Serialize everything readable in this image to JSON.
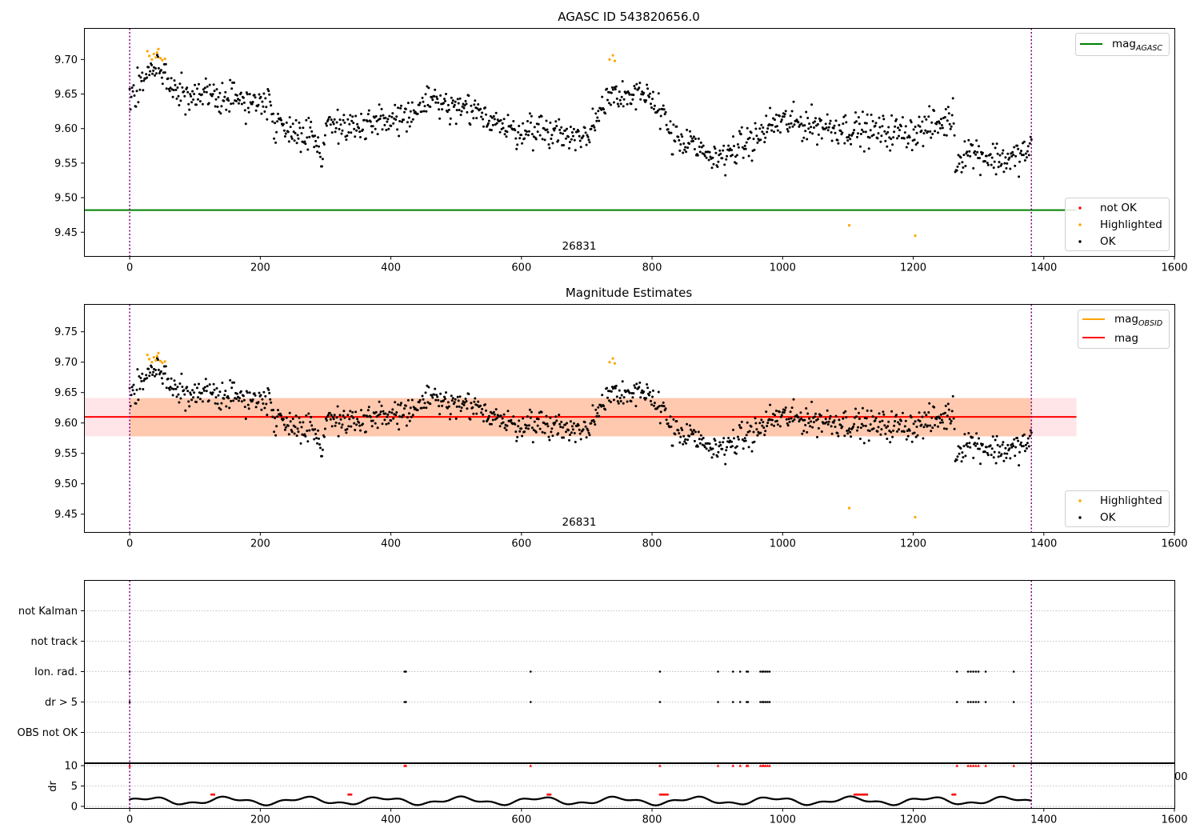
{
  "chart_data": [
    {
      "type": "scatter",
      "title": "AGASC ID 543820656.0",
      "xlim": [
        -70,
        1600
      ],
      "ylim": [
        9.415,
        9.745
      ],
      "xticks": [
        0,
        200,
        400,
        600,
        800,
        1000,
        1200,
        1400,
        1600
      ],
      "yticks": [
        9.45,
        9.5,
        9.55,
        9.6,
        9.65,
        9.7
      ],
      "ytick_labels": [
        "9.45",
        "9.50",
        "9.55",
        "9.60",
        "9.65",
        "9.70"
      ],
      "grid": false,
      "vlines": [
        0,
        1381
      ],
      "annotation": {
        "text": "26831",
        "x": 690,
        "y": 9.425
      },
      "lines": [
        {
          "name": "mag",
          "subscript": "AGASC",
          "y": 9.482,
          "x": [
            -70,
            1450
          ],
          "color": "#008000"
        }
      ],
      "line_legend": {
        "placement": "top-right"
      },
      "marker_legend": {
        "placement": "bottom-right",
        "entries": [
          {
            "name": "not OK",
            "color": "#ff0000"
          },
          {
            "name": "Highlighted",
            "color": "#ffa500"
          },
          {
            "name": "OK",
            "color": "#000000"
          }
        ]
      },
      "series_ok": {
        "name": "OK",
        "color": "#000000",
        "x_range": [
          0,
          1381
        ],
        "count": 1150
      },
      "series_highlighted": {
        "name": "Highlighted",
        "color": "#ffa500",
        "x": [
          27,
          30,
          34,
          37,
          40,
          42,
          44,
          47,
          50,
          54,
          735,
          740,
          743,
          1102,
          1203
        ],
        "y": [
          9.712,
          9.705,
          9.7,
          9.708,
          9.703,
          9.71,
          9.715,
          9.702,
          9.699,
          9.701,
          9.7,
          9.706,
          9.698,
          9.46,
          9.445
        ]
      },
      "series_not_ok": {
        "name": "not OK",
        "color": "#ff0000",
        "x": [],
        "y": []
      }
    },
    {
      "type": "scatter",
      "title": "Magnitude Estimates",
      "xlim": [
        -70,
        1600
      ],
      "ylim": [
        9.42,
        9.795
      ],
      "xticks": [
        0,
        200,
        400,
        600,
        800,
        1000,
        1200,
        1400,
        1600
      ],
      "yticks": [
        9.45,
        9.5,
        9.55,
        9.6,
        9.65,
        9.7,
        9.75
      ],
      "ytick_labels": [
        "9.45",
        "9.50",
        "9.55",
        "9.60",
        "9.65",
        "9.70",
        "9.75"
      ],
      "grid": false,
      "vlines": [
        0,
        1381
      ],
      "annotation": {
        "text": "26831",
        "x": 690,
        "y": 9.43
      },
      "bands": [
        {
          "name": "mag band",
          "x": [
            -70,
            1450
          ],
          "y": [
            9.578,
            9.641
          ],
          "color": "#ffb3bd"
        },
        {
          "name": "mag OBSID band",
          "x": [
            0,
            1381
          ],
          "y": [
            9.578,
            9.641
          ],
          "color": "#ffb27f"
        }
      ],
      "lines": [
        {
          "name": "mag",
          "subscript": "OBSID",
          "y": 9.61,
          "x": [
            0,
            1381
          ],
          "color": "#ffa500"
        },
        {
          "name": "mag",
          "subscript": "",
          "y": 9.61,
          "x": [
            -70,
            1450
          ],
          "color": "#ff0000"
        }
      ],
      "line_legend": {
        "placement": "top-right"
      },
      "marker_legend": {
        "placement": "bottom-right",
        "entries": [
          {
            "name": "Highlighted",
            "color": "#ffa500"
          },
          {
            "name": "OK",
            "color": "#000000"
          }
        ]
      },
      "series_ok": {
        "name": "OK",
        "color": "#000000",
        "x_range": [
          0,
          1381
        ],
        "count": 1150
      },
      "series_highlighted": {
        "name": "Highlighted",
        "color": "#ffa500",
        "x": [
          27,
          30,
          34,
          37,
          40,
          42,
          44,
          47,
          50,
          54,
          735,
          740,
          743,
          1102,
          1203
        ],
        "y": [
          9.712,
          9.705,
          9.7,
          9.708,
          9.703,
          9.71,
          9.715,
          9.702,
          9.699,
          9.701,
          9.7,
          9.706,
          9.698,
          9.46,
          9.445
        ]
      }
    },
    {
      "type": "scatter",
      "title": "",
      "xlim": [
        -70,
        1600
      ],
      "categories": [
        "not Kalman",
        "not track",
        "Ion. rad.",
        "dr > 5",
        "OBS not OK"
      ],
      "grid": true,
      "vlines": [
        0,
        1381
      ],
      "flag_points": {
        "Ion. rad.": [
          0,
          421,
          423,
          614,
          812,
          901,
          924,
          935,
          945,
          947,
          966,
          969,
          971,
          974,
          977,
          980,
          1267,
          1284,
          1288,
          1292,
          1296,
          1300,
          1311,
          1354
        ],
        "dr > 5": [
          0,
          421,
          423,
          614,
          812,
          901,
          924,
          935,
          945,
          947,
          966,
          969,
          971,
          974,
          977,
          980,
          1267,
          1284,
          1288,
          1292,
          1296,
          1300,
          1311,
          1354
        ]
      },
      "edge_tick_label": "00"
    },
    {
      "type": "scatter",
      "title": "",
      "xlim": [
        -70,
        1600
      ],
      "ylim": [
        -0.5,
        10.5
      ],
      "xticks": [
        0,
        200,
        400,
        600,
        800,
        1000,
        1200,
        1400,
        1600
      ],
      "yticks": [
        0,
        5,
        10
      ],
      "ytick_labels": [
        "0",
        "5",
        "10"
      ],
      "ylabel": "dr",
      "grid": true,
      "vlines": [
        0,
        1381
      ],
      "high_points": [
        0,
        421,
        423,
        614,
        812,
        901,
        924,
        935,
        945,
        947,
        966,
        969,
        971,
        974,
        977,
        980,
        1267,
        1284,
        1288,
        1292,
        1296,
        1300,
        1311,
        1354
      ],
      "high_value": 10,
      "red_segments": [
        [
          125,
          130
        ],
        [
          335,
          340
        ],
        [
          640,
          645
        ],
        [
          812,
          825
        ],
        [
          1110,
          1130
        ],
        [
          1260,
          1265
        ]
      ]
    }
  ]
}
